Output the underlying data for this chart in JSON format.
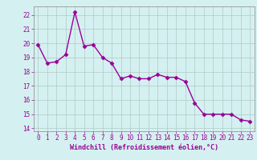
{
  "x": [
    0,
    1,
    2,
    3,
    4,
    5,
    6,
    7,
    8,
    9,
    10,
    11,
    12,
    13,
    14,
    15,
    16,
    17,
    18,
    19,
    20,
    21,
    22,
    23
  ],
  "y": [
    19.9,
    18.6,
    18.7,
    19.2,
    22.2,
    19.8,
    19.9,
    19.0,
    18.6,
    17.5,
    17.7,
    17.5,
    17.5,
    17.8,
    17.6,
    17.6,
    17.3,
    15.8,
    15.0,
    15.0,
    15.0,
    15.0,
    14.6,
    14.5
  ],
  "line_color": "#990099",
  "marker": "D",
  "marker_size": 2.5,
  "bg_color": "#d5f0f0",
  "grid_color": "#b0c8c8",
  "xlabel": "Windchill (Refroidissement éolien,°C)",
  "xlabel_color": "#990099",
  "tick_color": "#990099",
  "label_color": "#990099",
  "yticks": [
    14,
    15,
    16,
    17,
    18,
    19,
    20,
    21,
    22
  ],
  "xticks": [
    0,
    1,
    2,
    3,
    4,
    5,
    6,
    7,
    8,
    9,
    10,
    11,
    12,
    13,
    14,
    15,
    16,
    17,
    18,
    19,
    20,
    21,
    22,
    23
  ],
  "ylim": [
    13.8,
    22.6
  ],
  "xlim": [
    -0.5,
    23.5
  ],
  "spine_color": "#888888",
  "linewidth": 1.0,
  "xlabel_fontsize": 6.0,
  "tick_fontsize": 5.5
}
